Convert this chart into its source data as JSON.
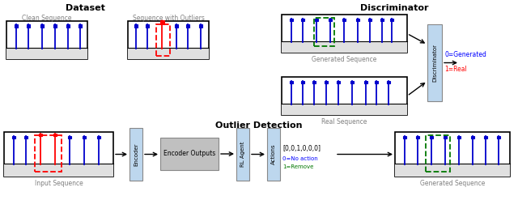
{
  "title_dataset": "Dataset",
  "title_discriminator": "Discriminator",
  "title_outlier": "Outlier Detection",
  "label_clean": "Clean Sequence",
  "label_outlier_seq": "Sequence with Outliers",
  "label_generated": "Generated Sequence",
  "label_real": "Real Sequence",
  "label_input": "Input Sequence",
  "label_generated2": "Generated Sequence",
  "label_encoder": "Encoder",
  "label_enc_out": "Encoder Outputs",
  "label_agent": "RL Agent",
  "label_actions": "Actions",
  "label_actions_text": "[0,0,1,0,0,0]",
  "label_0gen": "0=No action",
  "label_1real": "1=Remove",
  "label_disc": "Discriminator",
  "label_0gen2": "0=Generated",
  "label_1real2": "1=Real",
  "blue": "#0000CC",
  "red": "#FF0000",
  "green": "#007700",
  "lightblue_bar": "#BDD7EE",
  "gray_box": "#C0C0C0",
  "black": "#000000",
  "white": "#FFFFFF",
  "strip_color": "#E0E0E0",
  "bg": "#FFFFFF",
  "text_gray": "#808080"
}
